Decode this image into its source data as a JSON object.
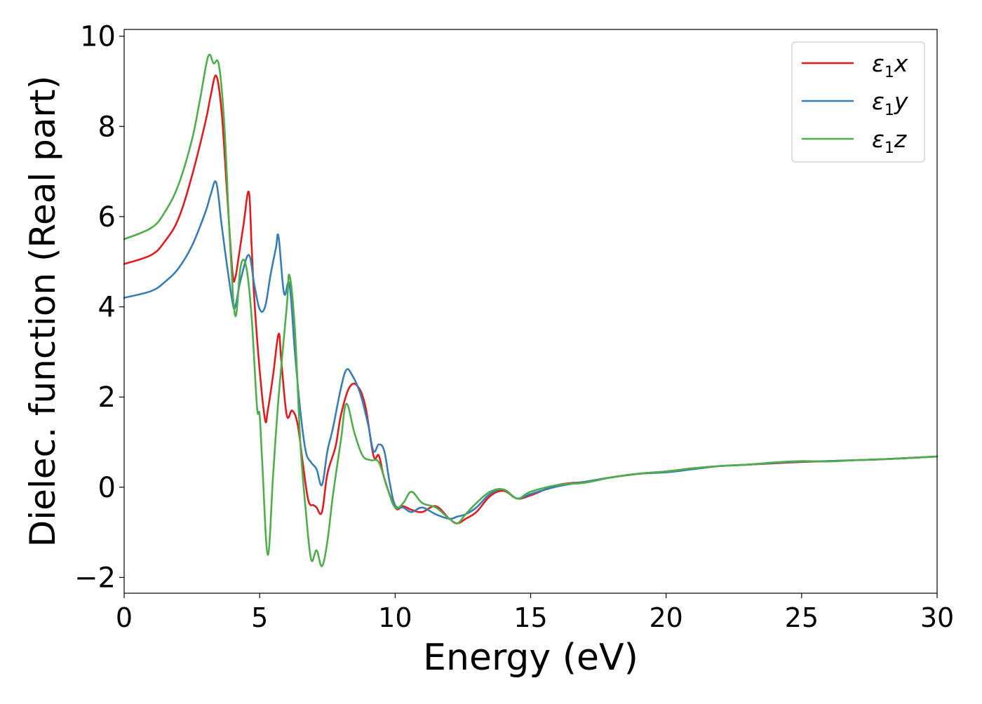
{
  "chart_data": {
    "type": "line",
    "xlabel": "Energy (eV)",
    "ylabel": "Dielec. function (Real part)",
    "xlim": [
      0,
      30
    ],
    "ylim": [
      -2.35,
      10.15
    ],
    "xticks": [
      0,
      5,
      10,
      15,
      20,
      25,
      30
    ],
    "xtick_labels": [
      "0",
      "5",
      "10",
      "15",
      "20",
      "25",
      "30"
    ],
    "yticks": [
      -2,
      0,
      2,
      4,
      6,
      8,
      10
    ],
    "ytick_labels": [
      "−2",
      "0",
      "2",
      "4",
      "6",
      "8",
      "10"
    ],
    "grid": false,
    "legend_position": "top-right",
    "series": [
      {
        "name": "ε₁x",
        "legend_main": "ε",
        "legend_sub": "1",
        "legend_suffix": "x",
        "color": "#e41a1c",
        "x": [
          0,
          1,
          1.5,
          2,
          2.5,
          3,
          3.2,
          3.4,
          3.6,
          3.8,
          4.0,
          4.1,
          4.2,
          4.4,
          4.6,
          4.7,
          4.8,
          5.0,
          5.2,
          5.3,
          5.5,
          5.7,
          5.8,
          6.0,
          6.2,
          6.4,
          6.6,
          6.8,
          7.0,
          7.1,
          7.3,
          7.5,
          7.8,
          8.0,
          8.3,
          8.6,
          8.9,
          9.2,
          9.4,
          9.6,
          10.0,
          10.3,
          10.6,
          11.0,
          11.5,
          12.0,
          12.3,
          12.6,
          13.0,
          13.5,
          14.0,
          14.5,
          15.0,
          16.0,
          17.0,
          18.0,
          19.0,
          20.0,
          21.0,
          22.0,
          23.0,
          24.0,
          25.0,
          26.0,
          27.0,
          28.0,
          29.0,
          30.0
        ],
        "y": [
          4.95,
          5.15,
          5.45,
          5.95,
          6.9,
          8.1,
          8.7,
          9.12,
          8.3,
          6.5,
          4.75,
          4.65,
          5.0,
          5.8,
          6.55,
          5.4,
          4.2,
          2.6,
          1.5,
          1.7,
          2.5,
          3.4,
          2.8,
          1.6,
          1.7,
          1.4,
          0.5,
          -0.3,
          -0.4,
          -0.45,
          -0.55,
          0.3,
          0.9,
          1.6,
          2.2,
          2.25,
          1.8,
          0.7,
          0.7,
          0.2,
          -0.45,
          -0.42,
          -0.5,
          -0.55,
          -0.42,
          -0.7,
          -0.8,
          -0.7,
          -0.55,
          -0.2,
          -0.08,
          -0.25,
          -0.18,
          0.05,
          0.12,
          0.22,
          0.3,
          0.35,
          0.42,
          0.47,
          0.5,
          0.53,
          0.56,
          0.58,
          0.6,
          0.62,
          0.65,
          0.68
        ]
      },
      {
        "name": "ε₁y",
        "legend_main": "ε",
        "legend_sub": "1",
        "legend_suffix": "y",
        "color": "#377eb8",
        "x": [
          0,
          1,
          1.5,
          2,
          2.5,
          3,
          3.2,
          3.4,
          3.6,
          3.8,
          4.0,
          4.1,
          4.3,
          4.6,
          4.8,
          5.0,
          5.2,
          5.4,
          5.6,
          5.7,
          5.9,
          6.1,
          6.3,
          6.5,
          6.7,
          6.9,
          7.1,
          7.3,
          7.5,
          7.7,
          8.0,
          8.2,
          8.4,
          8.7,
          9.0,
          9.2,
          9.4,
          9.6,
          9.8,
          10.0,
          10.3,
          10.6,
          11.0,
          11.5,
          12.0,
          12.3,
          12.6,
          13.0,
          13.5,
          14.0,
          14.5,
          15.0,
          16.0,
          17.0,
          18.0,
          19.0,
          20.0,
          21.0,
          22.0,
          23.0,
          24.0,
          25.0,
          26.0,
          27.0,
          28.0,
          29.0,
          30.0
        ],
        "y": [
          4.2,
          4.35,
          4.55,
          4.85,
          5.35,
          6.1,
          6.5,
          6.75,
          5.8,
          4.9,
          4.1,
          4.0,
          4.6,
          5.15,
          4.5,
          3.95,
          4.0,
          4.7,
          5.3,
          5.55,
          4.3,
          4.5,
          3.0,
          1.7,
          0.8,
          0.55,
          0.4,
          0.05,
          0.8,
          1.3,
          2.2,
          2.6,
          2.5,
          2.1,
          1.4,
          0.8,
          0.95,
          0.8,
          0.1,
          -0.4,
          -0.45,
          -0.55,
          -0.45,
          -0.6,
          -0.7,
          -0.65,
          -0.6,
          -0.45,
          -0.15,
          -0.05,
          -0.25,
          -0.15,
          0.02,
          0.12,
          0.22,
          0.3,
          0.33,
          0.4,
          0.47,
          0.5,
          0.54,
          0.57,
          0.58,
          0.6,
          0.62,
          0.65,
          0.68
        ]
      },
      {
        "name": "ε₁z",
        "legend_main": "ε",
        "legend_sub": "1",
        "legend_suffix": "z",
        "color": "#4daf4a",
        "x": [
          0,
          1,
          1.5,
          2,
          2.5,
          2.8,
          3.1,
          3.3,
          3.5,
          3.7,
          3.9,
          4.1,
          4.3,
          4.5,
          4.7,
          4.9,
          5.0,
          5.1,
          5.3,
          5.5,
          5.7,
          6.0,
          6.1,
          6.3,
          6.5,
          6.7,
          6.9,
          7.1,
          7.3,
          7.5,
          7.7,
          8.0,
          8.2,
          8.5,
          8.8,
          9.1,
          9.4,
          9.7,
          10.0,
          10.3,
          10.6,
          11.0,
          11.5,
          12.0,
          12.3,
          12.6,
          13.0,
          13.5,
          14.0,
          14.5,
          15.0,
          16.0,
          17.0,
          18.0,
          19.0,
          20.0,
          21.0,
          22.0,
          23.0,
          24.0,
          25.0,
          26.0,
          27.0,
          28.0,
          29.0,
          30.0
        ],
        "y": [
          5.5,
          5.75,
          6.1,
          6.7,
          7.7,
          8.6,
          9.55,
          9.4,
          9.35,
          8.0,
          5.5,
          3.8,
          4.9,
          4.9,
          3.8,
          1.8,
          1.6,
          0.5,
          -1.5,
          0.3,
          2.0,
          4.0,
          4.7,
          3.5,
          1.0,
          -0.5,
          -1.6,
          -1.4,
          -1.75,
          -1.2,
          -0.2,
          1.05,
          1.85,
          1.2,
          0.7,
          0.6,
          0.55,
          0.0,
          -0.45,
          -0.35,
          -0.1,
          -0.35,
          -0.45,
          -0.7,
          -0.8,
          -0.6,
          -0.35,
          -0.1,
          -0.05,
          -0.25,
          -0.1,
          0.05,
          0.1,
          0.22,
          0.3,
          0.35,
          0.42,
          0.47,
          0.5,
          0.55,
          0.58,
          0.57,
          0.6,
          0.62,
          0.65,
          0.68
        ]
      }
    ]
  }
}
